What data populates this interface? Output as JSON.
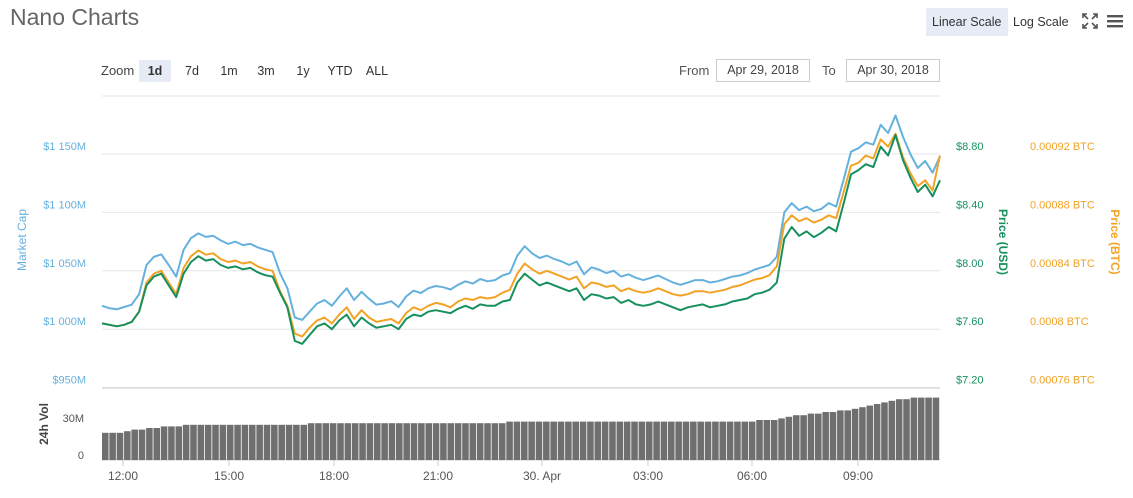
{
  "header": {
    "title": "Nano Charts",
    "linear_scale": "Linear Scale",
    "log_scale": "Log Scale",
    "icons": [
      "fullscreen-icon",
      "menu-icon"
    ]
  },
  "zoom": {
    "label": "Zoom",
    "options": [
      "1d",
      "7d",
      "1m",
      "3m",
      "1y",
      "YTD",
      "ALL"
    ],
    "selected": "1d"
  },
  "range": {
    "from_label": "From",
    "from_value": "Apr 29, 2018",
    "to_label": "To",
    "to_value": "Apr 30, 2018"
  },
  "colors": {
    "market_cap": "#65b1de",
    "price_usd": "#17905e",
    "price_btc": "#f2a325",
    "volume": "#6f6f6f",
    "grid": "#e6e6e6"
  },
  "chart_data": {
    "type": "line",
    "x_ticks": [
      "12:00",
      "15:00",
      "18:00",
      "21:00",
      "30. Apr",
      "03:00",
      "06:00",
      "09:00"
    ],
    "grid": true,
    "axes": {
      "market_cap": {
        "label": "Market Cap",
        "ticks": [
          "$1 150M",
          "$1 100M",
          "$1 050M",
          "$1 000M",
          "$950M"
        ],
        "ylim": [
          950,
          1200
        ]
      },
      "price_usd": {
        "label": "Price (USD)",
        "ticks": [
          "$8.80",
          "$8.40",
          "$8.00",
          "$7.60",
          "$7.20"
        ],
        "ylim": [
          7.2,
          9.0
        ]
      },
      "price_btc": {
        "label": "Price (BTC)",
        "ticks": [
          "0.00092 BTC",
          "0.00088 BTC",
          "0.00084 BTC",
          "0.0008 BTC",
          "0.00076 BTC"
        ],
        "ylim": [
          0.00076,
          0.00094
        ]
      },
      "volume": {
        "label": "24h Vol",
        "ticks": [
          "30M",
          "0"
        ],
        "ylim": [
          0,
          45
        ]
      }
    },
    "series": [
      {
        "key": "market_cap",
        "values": [
          1020,
          1018,
          1017,
          1019,
          1021,
          1030,
          1055,
          1062,
          1064,
          1055,
          1045,
          1068,
          1078,
          1082,
          1079,
          1080,
          1076,
          1073,
          1075,
          1072,
          1073,
          1070,
          1068,
          1066,
          1048,
          1035,
          1010,
          1008,
          1015,
          1022,
          1025,
          1020,
          1028,
          1035,
          1025,
          1032,
          1026,
          1021,
          1022,
          1024,
          1019,
          1028,
          1033,
          1031,
          1035,
          1037,
          1036,
          1034,
          1038,
          1041,
          1039,
          1043,
          1041,
          1042,
          1046,
          1048,
          1063,
          1071,
          1065,
          1061,
          1063,
          1060,
          1058,
          1055,
          1058,
          1047,
          1053,
          1051,
          1048,
          1050,
          1045,
          1047,
          1044,
          1042,
          1044,
          1046,
          1043,
          1040,
          1038,
          1040,
          1042,
          1042,
          1040,
          1041,
          1043,
          1045,
          1046,
          1048,
          1051,
          1053,
          1055,
          1062,
          1100,
          1108,
          1102,
          1105,
          1101,
          1103,
          1108,
          1105,
          1128,
          1152,
          1155,
          1160,
          1158,
          1175,
          1168,
          1183,
          1165,
          1150,
          1138,
          1144,
          1134,
          1148
        ],
        "note": "approximate reading of the blue market-cap line, sampled evenly from Apr 29 ~11:00 to Apr 30 ~11:00"
      },
      {
        "key": "price_usd",
        "values": [
          7.64,
          7.63,
          7.62,
          7.63,
          7.65,
          7.72,
          7.9,
          7.96,
          7.98,
          7.9,
          7.82,
          7.98,
          8.06,
          8.1,
          8.07,
          8.08,
          8.04,
          8.02,
          8.03,
          8.01,
          8.02,
          7.99,
          7.97,
          7.96,
          7.85,
          7.75,
          7.52,
          7.5,
          7.56,
          7.62,
          7.64,
          7.6,
          7.66,
          7.7,
          7.62,
          7.68,
          7.64,
          7.61,
          7.62,
          7.63,
          7.6,
          7.67,
          7.7,
          7.69,
          7.72,
          7.73,
          7.72,
          7.71,
          7.74,
          7.76,
          7.74,
          7.77,
          7.76,
          7.76,
          7.79,
          7.8,
          7.92,
          7.98,
          7.94,
          7.9,
          7.92,
          7.9,
          7.88,
          7.86,
          7.88,
          7.8,
          7.84,
          7.83,
          7.81,
          7.82,
          7.78,
          7.8,
          7.77,
          7.76,
          7.77,
          7.79,
          7.77,
          7.75,
          7.73,
          7.75,
          7.76,
          7.77,
          7.75,
          7.76,
          7.77,
          7.79,
          7.8,
          7.81,
          7.84,
          7.85,
          7.87,
          7.92,
          8.22,
          8.3,
          8.24,
          8.27,
          8.23,
          8.26,
          8.3,
          8.27,
          8.46,
          8.66,
          8.69,
          8.73,
          8.71,
          8.85,
          8.79,
          8.93,
          8.76,
          8.64,
          8.54,
          8.59,
          8.51,
          8.62
        ]
      },
      {
        "key": "price_btc",
        "values": [
          0.000804,
          0.000803,
          0.000802,
          0.000803,
          0.000805,
          0.000812,
          0.000832,
          0.000838,
          0.00084,
          0.000832,
          0.000824,
          0.000842,
          0.00085,
          0.000854,
          0.000851,
          0.000852,
          0.000848,
          0.000846,
          0.000847,
          0.000845,
          0.000846,
          0.000843,
          0.000841,
          0.00084,
          0.000826,
          0.000816,
          0.000797,
          0.000795,
          0.000801,
          0.000806,
          0.000808,
          0.000804,
          0.00081,
          0.000815,
          0.000807,
          0.000813,
          0.000808,
          0.000805,
          0.000806,
          0.000807,
          0.000804,
          0.000811,
          0.000815,
          0.000813,
          0.000816,
          0.000818,
          0.000817,
          0.000815,
          0.000819,
          0.000821,
          0.00082,
          0.000822,
          0.000821,
          0.000822,
          0.000825,
          0.000827,
          0.000838,
          0.000845,
          0.000841,
          0.000838,
          0.00084,
          0.000838,
          0.000836,
          0.000834,
          0.000836,
          0.000828,
          0.000832,
          0.000831,
          0.000829,
          0.00083,
          0.000826,
          0.000828,
          0.000826,
          0.000825,
          0.000826,
          0.000828,
          0.000826,
          0.000824,
          0.000823,
          0.000824,
          0.000826,
          0.000826,
          0.000825,
          0.000826,
          0.000827,
          0.000829,
          0.00083,
          0.000832,
          0.000834,
          0.000835,
          0.000837,
          0.000843,
          0.000872,
          0.000878,
          0.000874,
          0.000876,
          0.000873,
          0.000875,
          0.000878,
          0.000876,
          0.000894,
          0.000912,
          0.000914,
          0.000919,
          0.000917,
          0.00093,
          0.000925,
          0.000934,
          0.000918,
          0.000907,
          0.000898,
          0.000902,
          0.000895,
          0.000919
        ]
      },
      {
        "key": "volume",
        "values": [
          17,
          17,
          17,
          18,
          19,
          19,
          20,
          20,
          21,
          21,
          21,
          22,
          22,
          22,
          22,
          22,
          22,
          22,
          22,
          22,
          22,
          22,
          22,
          22,
          22,
          22,
          22,
          22,
          23,
          23,
          23,
          23,
          23,
          23,
          23,
          23,
          23,
          23,
          23,
          23,
          23,
          23,
          23,
          23,
          23,
          23,
          23,
          23,
          23,
          23,
          23,
          23,
          23,
          23,
          23,
          24,
          24,
          24,
          24,
          24,
          24,
          24,
          24,
          24,
          24,
          24,
          24,
          24,
          24,
          24,
          24,
          24,
          24,
          24,
          24,
          24,
          24,
          24,
          24,
          24,
          24,
          24,
          24,
          24,
          24,
          24,
          24,
          24,
          24,
          25,
          25,
          25,
          26,
          27,
          28,
          28,
          29,
          29,
          30,
          30,
          31,
          31,
          32,
          33,
          34,
          35,
          36,
          37,
          38,
          38,
          39,
          39,
          39,
          39
        ],
        "note": "approximate 24h volume in $M"
      }
    ]
  }
}
